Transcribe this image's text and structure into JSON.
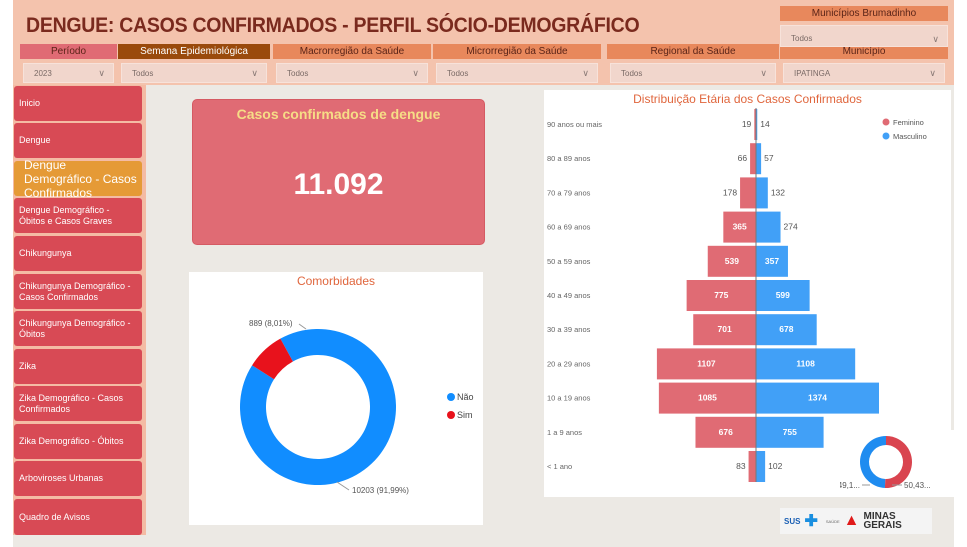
{
  "header": {
    "title": "DENGUE: CASOS CONFIRMADOS - PERFIL SÓCIO-DEMOGRÁFICO"
  },
  "filters": [
    {
      "label": "Período",
      "value": "2023",
      "color": "#e06b74"
    },
    {
      "label": "Semana Epidemiológica",
      "value": "Todos",
      "color": "#9a4a0c"
    },
    {
      "label": "Macrorregião da Saúde",
      "value": "Todos",
      "color": "#e8885c"
    },
    {
      "label": "Microrregião da Saúde",
      "value": "Todos",
      "color": "#e8885c"
    },
    {
      "label": "Regional da Saúde",
      "value": "Todos",
      "color": "#e8885c"
    },
    {
      "label": "Município",
      "value": "IPATINGA",
      "color": "#e8885c"
    }
  ],
  "filter_brumadinho": {
    "label": "Municípios Brumadinho",
    "value": "Todos"
  },
  "sidebar": {
    "items": [
      {
        "label": "Inicio"
      },
      {
        "label": "Dengue"
      },
      {
        "label": "Dengue Demográfico - Casos Confirmados",
        "active": true
      },
      {
        "label": "Dengue Demográfico - Óbitos e Casos Graves"
      },
      {
        "label": "Chikungunya"
      },
      {
        "label": "Chikungunya Demográfico - Casos Confirmados"
      },
      {
        "label": "Chikungunya Demográfico - Óbitos"
      },
      {
        "label": "Zika"
      },
      {
        "label": "Zika Demográfico - Casos Confirmados"
      },
      {
        "label": "Zika Demográfico - Óbitos"
      },
      {
        "label": "Arboviroses Urbanas"
      },
      {
        "label": "Quadro de Avisos"
      }
    ]
  },
  "kpi": {
    "title": "Casos confirmados de dengue",
    "value": "11.092"
  },
  "chart_data": [
    {
      "type": "pie",
      "title": "Comorbidades",
      "donut": true,
      "legend": "right",
      "categories": [
        "Não",
        "Sim"
      ],
      "values": [
        10203,
        889
      ],
      "labels": [
        "10203 (91,99%)",
        "889 (8,01%)"
      ],
      "colors": [
        "#118dff",
        "#e8121c"
      ]
    },
    {
      "type": "bar",
      "orientation": "horizontal",
      "title": "Distribuição Etária dos Casos Confirmados",
      "legend": "top-right",
      "categories": [
        "90 anos ou mais",
        "80 a 89 anos",
        "70 a 79 anos",
        "60 a 69 anos",
        "50 a 59 anos",
        "40 a 49 anos",
        "30 a 39 anos",
        "20 a 29 anos",
        "10 a 19 anos",
        "1 a 9 anos",
        "< 1 ano"
      ],
      "series": [
        {
          "name": "Feminino",
          "color": "#e06b74",
          "values": [
            19,
            66,
            178,
            365,
            539,
            775,
            701,
            1107,
            1085,
            676,
            83
          ]
        },
        {
          "name": "Masculino",
          "color": "#41a0f7",
          "values": [
            14,
            57,
            132,
            274,
            357,
            599,
            678,
            1108,
            1374,
            755,
            102
          ]
        }
      ]
    },
    {
      "type": "pie",
      "donut": true,
      "categories": [
        "Feminino",
        "Masculino"
      ],
      "values": [
        50.43,
        49.1
      ],
      "labels": [
        "50,43...",
        "49,1..."
      ],
      "colors": [
        "#d9444f",
        "#1f8cf0"
      ]
    }
  ],
  "logo": {
    "text": "SUS SAÚDE MINAS GERAIS"
  }
}
